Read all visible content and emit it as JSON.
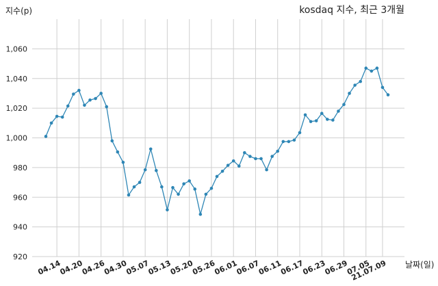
{
  "chart_data": {
    "type": "line",
    "title": "kosdaq 지수, 최근 3개월",
    "xlabel": "날짜(일)",
    "ylabel": "지수(p)",
    "ylim": [
      920,
      1080
    ],
    "yticks": [
      920,
      940,
      960,
      980,
      1000,
      1020,
      1040,
      1060
    ],
    "ytick_labels": [
      "920",
      "940",
      "960",
      "980",
      "1,000",
      "1,020",
      "1,040",
      "1,060"
    ],
    "xtick_labels": [
      "04.14",
      "04.20",
      "04.26",
      "04.30",
      "05.07",
      "05.13",
      "05.20",
      "05.26",
      "06.01",
      "06.07",
      "06.11",
      "06.17",
      "06.23",
      "06.29",
      "07.05",
      "21.07.09"
    ],
    "xtick_index": [
      2,
      6,
      10,
      14,
      18,
      22,
      26,
      30,
      34,
      38,
      42,
      46,
      50,
      54,
      58,
      61
    ],
    "grid": true,
    "series": [
      {
        "color": "#2e86b5",
        "values": [
          1001,
          1010,
          1014.5,
          1014,
          1021.5,
          1029.5,
          1032,
          1022,
          1025.5,
          1026.5,
          1030,
          1021,
          998,
          990.5,
          983.5,
          961.5,
          967,
          970,
          978.5,
          992.5,
          978,
          967,
          951.5,
          966.5,
          962,
          969,
          971,
          965.5,
          948.5,
          962,
          966,
          974,
          977.5,
          981.5,
          984.5,
          981,
          990,
          987.5,
          986,
          986,
          978.5,
          987.5,
          991,
          997.5,
          997.5,
          998.5,
          1003.5,
          1015.5,
          1011,
          1011.5,
          1016.5,
          1012.5,
          1012,
          1018,
          1022.5,
          1030,
          1035.5,
          1038,
          1047,
          1045,
          1047,
          1034,
          1029
        ]
      }
    ]
  }
}
